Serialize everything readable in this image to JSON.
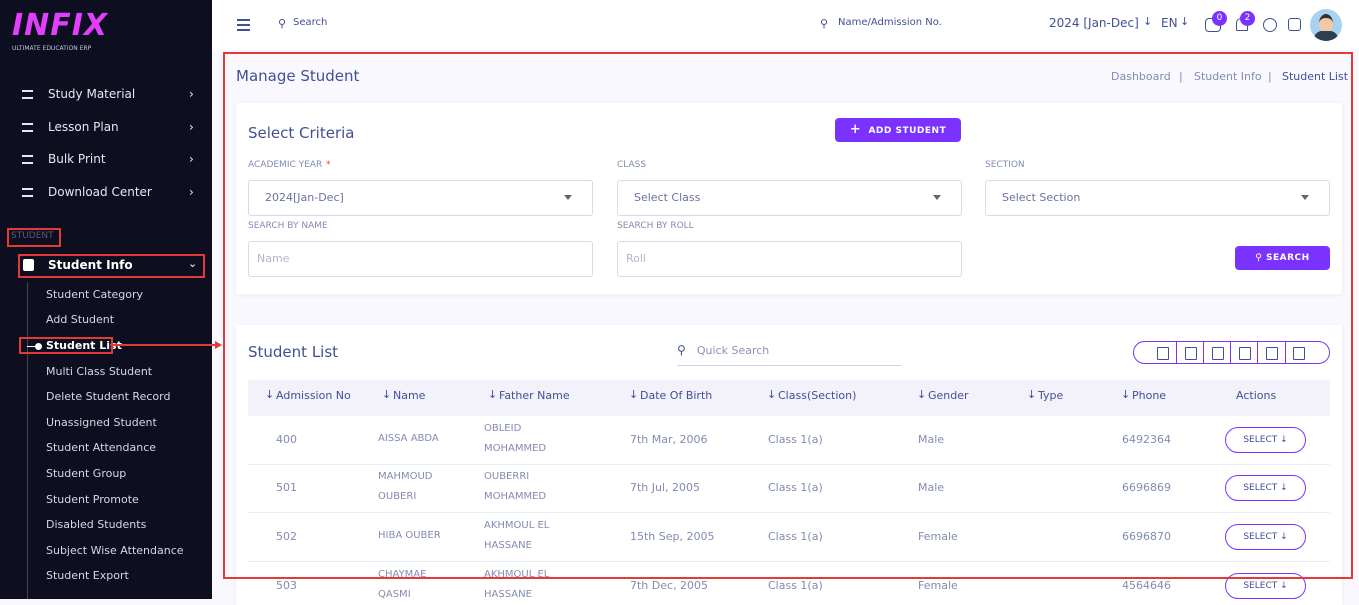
{
  "sidebar": {
    "logo": "INFIX",
    "logo_sub": "ULTIMATE EDUCATION ERP",
    "menu": [
      "Study Material",
      "Lesson Plan",
      "Bulk Print",
      "Download Center"
    ],
    "section": "STUDENT",
    "active_group": "Student Info",
    "submenu": [
      "Student Category",
      "Add Student",
      "Student List",
      "Multi Class Student",
      "Delete Student Record",
      "Unassigned Student",
      "Student Attendance",
      "Student Group",
      "Student Promote",
      "Disabled Students",
      "Subject Wise Attendance",
      "Student Export"
    ]
  },
  "topbar": {
    "search": "Search",
    "admission_search": "Name/Admission No.",
    "year": "2024 [Jan-Dec]",
    "lang": "EN",
    "messages": 0,
    "notifications": 2
  },
  "page": {
    "title": "Manage Student",
    "breadcrumb": [
      "Dashboard",
      "Student Info",
      "Student List"
    ]
  },
  "criteria": {
    "title": "Select Criteria",
    "add_button": "ADD STUDENT",
    "required_mark": "*",
    "fields": [
      {
        "label": "ACADEMIC YEAR",
        "value": "2024[Jan-Dec]"
      },
      {
        "label": "CLASS",
        "value": "Select Class"
      },
      {
        "label": "SECTION",
        "value": "Select Section"
      },
      {
        "label": "SEARCH BY NAME",
        "value": "Name"
      },
      {
        "label": "SEARCH BY ROLL",
        "value": "Roll"
      }
    ],
    "search_button": "SEARCH"
  },
  "list": {
    "title": "Student List",
    "quick_search": "Quick Search",
    "action_label": "SELECT",
    "columns": [
      "Admission No",
      "Name",
      "Father Name",
      "Date Of Birth",
      "Class(Section)",
      "Gender",
      "Type",
      "Phone",
      "Actions"
    ],
    "rows": [
      {
        "admission": "400",
        "name": [
          "AISSA ABDA"
        ],
        "father": [
          "OBLEID",
          "MOHAMMED"
        ],
        "dob": "7th Mar, 2006",
        "class": "Class 1(a)",
        "gender": "Male",
        "phone": "6492364"
      },
      {
        "admission": "501",
        "name": [
          "MAHMOUD",
          "OUBERI"
        ],
        "father": [
          "OUBERRI",
          "MOHAMMED"
        ],
        "dob": "7th Jul, 2005",
        "class": "Class 1(a)",
        "gender": "Male",
        "phone": "6696869"
      },
      {
        "admission": "502",
        "name": [
          "HIBA OUBER"
        ],
        "father": [
          "AKHMOUL EL",
          "HASSANE"
        ],
        "dob": "15th Sep, 2005",
        "class": "Class 1(a)",
        "gender": "Female",
        "phone": "6696870"
      },
      {
        "admission": "503",
        "name": [
          "CHAYMAE",
          "QASMI"
        ],
        "father": [
          "AKHMOUL EL",
          "HASSANE"
        ],
        "dob": "7th Dec, 2005",
        "class": "Class 1(a)",
        "gender": "Female",
        "phone": "4564646"
      }
    ]
  }
}
